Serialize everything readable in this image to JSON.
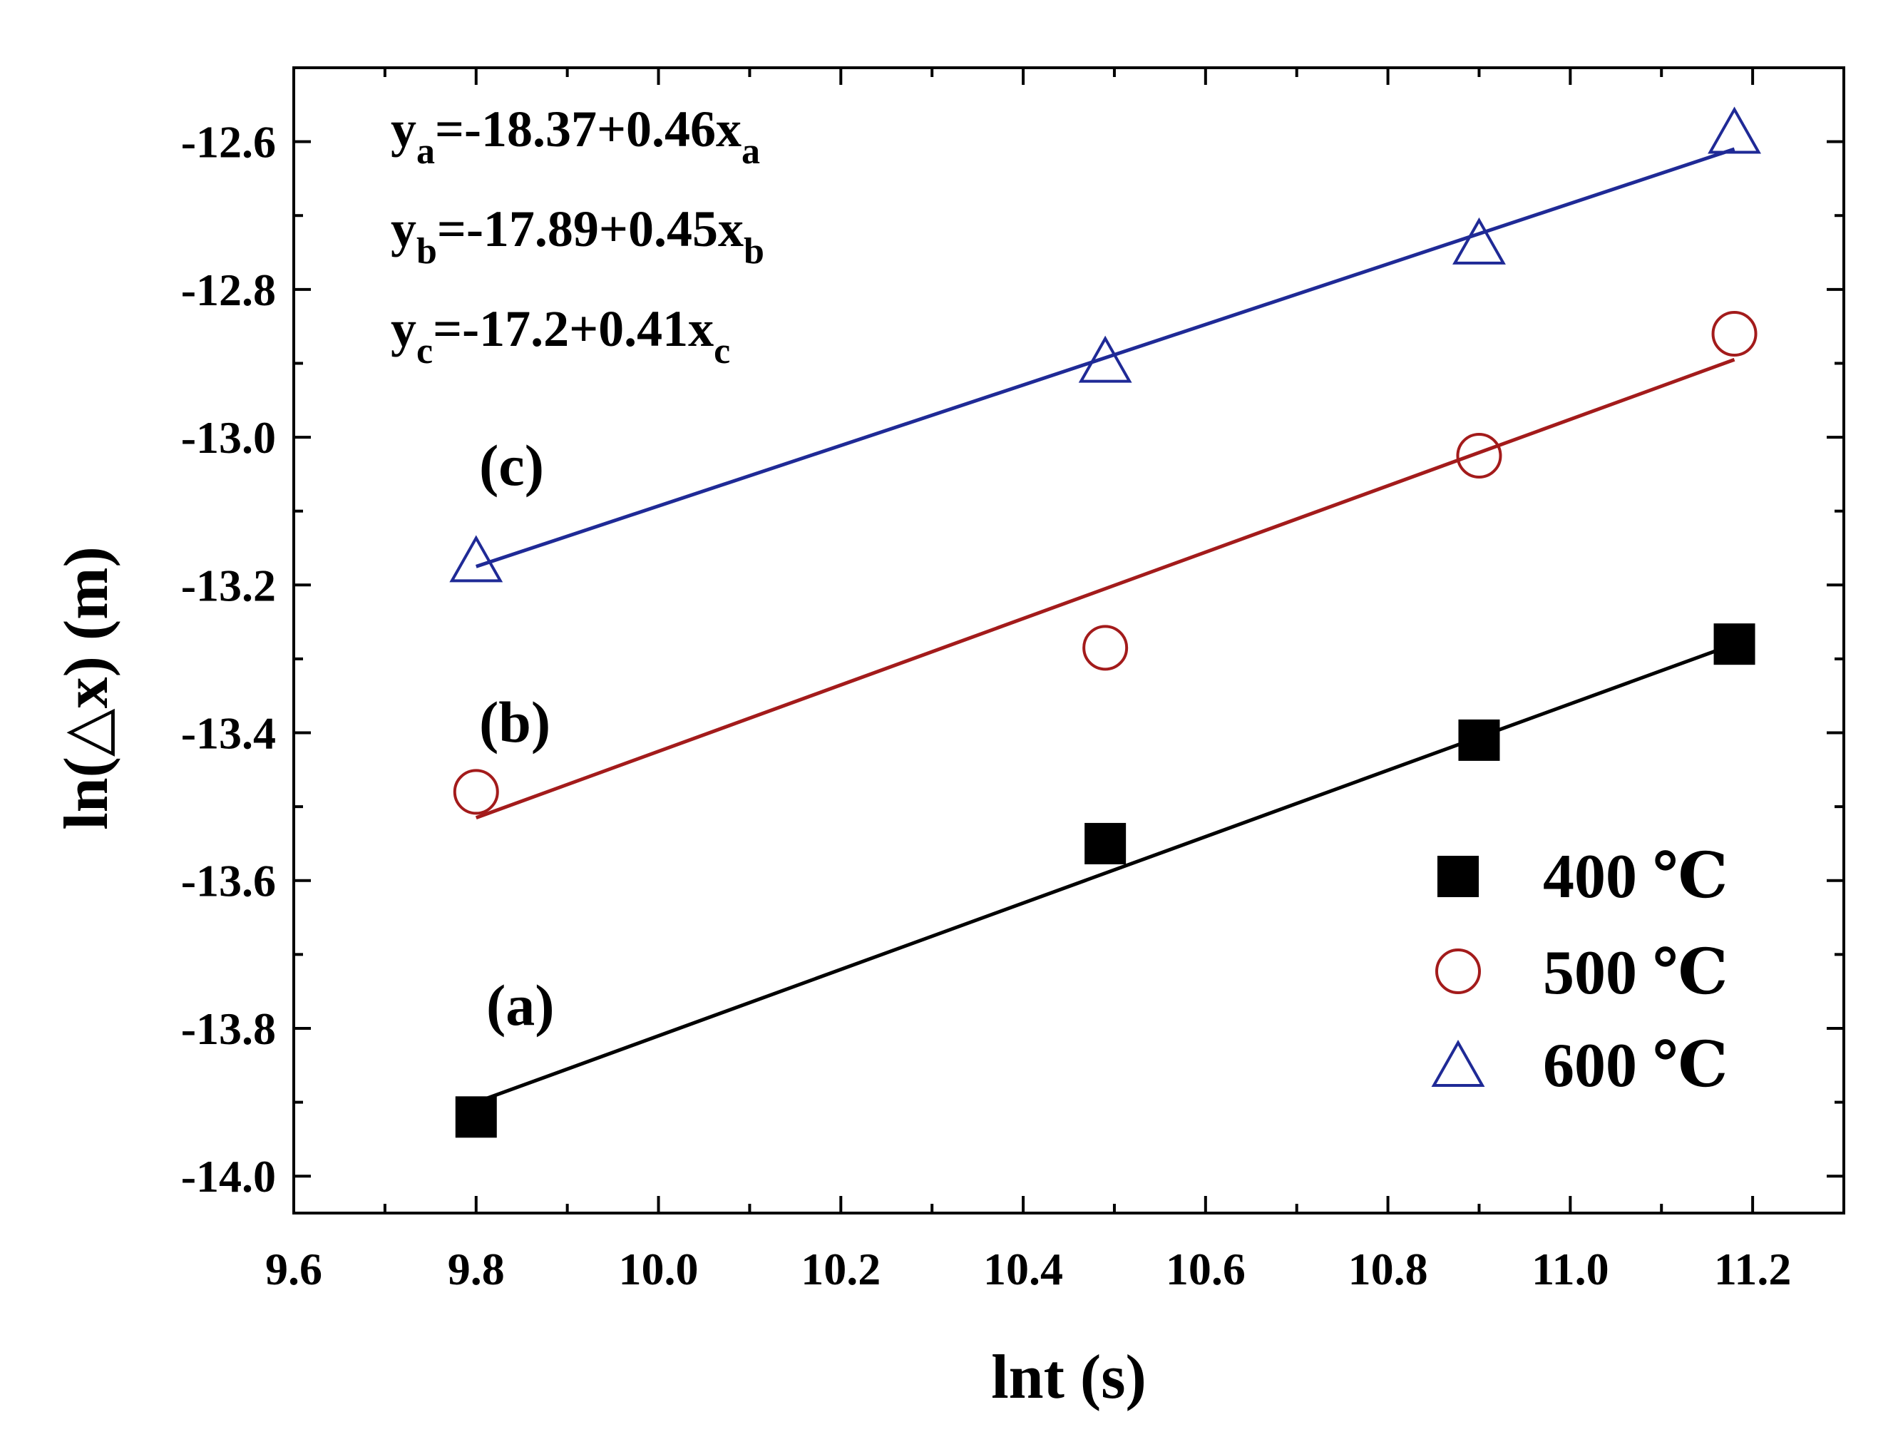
{
  "chart_data": {
    "type": "scatter",
    "xlabel": "lnt (s)",
    "ylabel": "ln(△x) (m)",
    "xlim": [
      9.6,
      11.3
    ],
    "ylim": [
      -14.05,
      -12.5
    ],
    "xticks": [
      9.6,
      9.8,
      10.0,
      10.2,
      10.4,
      10.6,
      10.8,
      11.0,
      11.2
    ],
    "xtick_labels": [
      "9.6",
      "9.8",
      "10.0",
      "10.2",
      "10.4",
      "10.6",
      "10.8",
      "11.0",
      "11.2"
    ],
    "yticks": [
      -14.0,
      -13.8,
      -13.6,
      -13.4,
      -13.2,
      -13.0,
      -12.8,
      -12.6
    ],
    "ytick_labels": [
      "-14.0",
      "-13.8",
      "-13.6",
      "-13.4",
      "-13.2",
      "-13.0",
      "-12.8",
      "-12.6"
    ],
    "xminor_step": 0.1,
    "yminor_step": 0.1,
    "series": [
      {
        "name": "400 ℃",
        "marker": "square-filled",
        "color": "#000000",
        "line_color": "#000000",
        "curve_label": "(a)",
        "x": [
          9.8,
          10.49,
          10.9,
          11.18
        ],
        "y": [
          -13.92,
          -13.55,
          -13.41,
          -13.28
        ],
        "fit": {
          "x": [
            9.8,
            11.18
          ],
          "y": [
            -13.9,
            -13.28
          ]
        }
      },
      {
        "name": "500 ℃",
        "marker": "circle-open",
        "color": "#a31b1b",
        "line_color": "#a31b1b",
        "curve_label": "(b)",
        "x": [
          9.8,
          10.49,
          10.9,
          11.18
        ],
        "y": [
          -13.48,
          -13.285,
          -13.025,
          -12.86
        ],
        "fit": {
          "x": [
            9.8,
            11.18
          ],
          "y": [
            -13.515,
            -12.895
          ]
        }
      },
      {
        "name": "600 ℃",
        "marker": "triangle-open",
        "color": "#1f2a96",
        "line_color": "#1f2a96",
        "curve_label": "(c)",
        "x": [
          9.8,
          10.49,
          10.9,
          11.18
        ],
        "y": [
          -13.17,
          -12.9,
          -12.74,
          -12.59
        ],
        "fit": {
          "x": [
            9.8,
            11.18
          ],
          "y": [
            -13.175,
            -12.61
          ]
        }
      }
    ],
    "equations": [
      {
        "y_sub": "a",
        "rhs": "=-18.37+0.46x",
        "x_sub": "a"
      },
      {
        "y_sub": "b",
        "rhs": "=-17.89+0.45x",
        "x_sub": "b"
      },
      {
        "y_sub": "c",
        "rhs": "=-17.2+0.41x",
        "x_sub": "c"
      }
    ],
    "legend": {
      "position": "bottom-right",
      "entries": [
        "400 ℃",
        "500 ℃",
        "600 ℃"
      ]
    }
  }
}
